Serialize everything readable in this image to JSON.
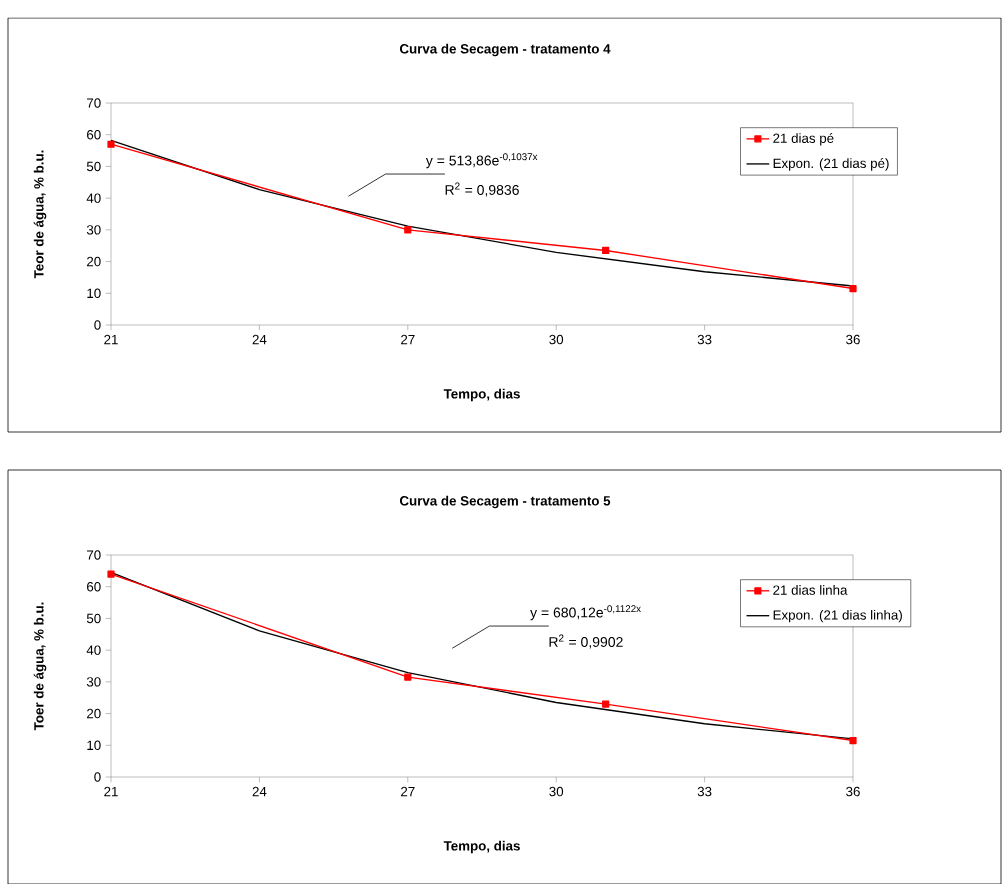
{
  "chart_data": [
    {
      "type": "line",
      "title": "Curva de Secagem - tratamento 4",
      "xlabel": "Tempo, dias",
      "ylabel": "Teor de água, % b.u.",
      "xlim": [
        21,
        36
      ],
      "ylim": [
        0,
        70
      ],
      "xticks": [
        21,
        24,
        27,
        30,
        33,
        36
      ],
      "yticks": [
        0,
        10,
        20,
        30,
        40,
        50,
        60,
        70
      ],
      "legend": "right",
      "series": [
        {
          "name": "21 dias pé",
          "color": "#ff0000",
          "marker": "square",
          "x": [
            21,
            27,
            31,
            36
          ],
          "values": [
            57,
            30,
            23.5,
            11.5
          ]
        },
        {
          "name": "Expon. (21 dias pé)",
          "color": "#000000",
          "marker": "none",
          "x": [
            21,
            24,
            27,
            30,
            33,
            36
          ],
          "values": [
            58.2,
            42.7,
            31.2,
            22.9,
            16.8,
            12.3
          ]
        }
      ],
      "annotations": [
        "y = 513,86e$^{-0,1037x}$",
        "R$^{2}$ = 0,9836"
      ]
    },
    {
      "type": "line",
      "title": "Curva de Secagem - tratamento 5",
      "xlabel": "Tempo, dias",
      "ylabel": "Toer de água, % b.u.",
      "xlim": [
        21,
        36
      ],
      "ylim": [
        0,
        70
      ],
      "xticks": [
        21,
        24,
        27,
        30,
        33,
        36
      ],
      "yticks": [
        0,
        10,
        20,
        30,
        40,
        50,
        60,
        70
      ],
      "legend": "right",
      "series": [
        {
          "name": "21 dias linha",
          "color": "#ff0000",
          "marker": "square",
          "x": [
            21,
            27,
            31,
            36
          ],
          "values": [
            64,
            31.5,
            23,
            11.5
          ]
        },
        {
          "name": "Expon. (21 dias linha)",
          "color": "#000000",
          "marker": "none",
          "x": [
            21,
            24,
            27,
            30,
            33,
            36
          ],
          "values": [
            64.5,
            46.1,
            32.9,
            23.5,
            16.8,
            12.0
          ]
        }
      ],
      "annotations": [
        "y = 680,12e$^{-0,1122x}$",
        "R$^{2}$ = 0,9902"
      ]
    }
  ]
}
